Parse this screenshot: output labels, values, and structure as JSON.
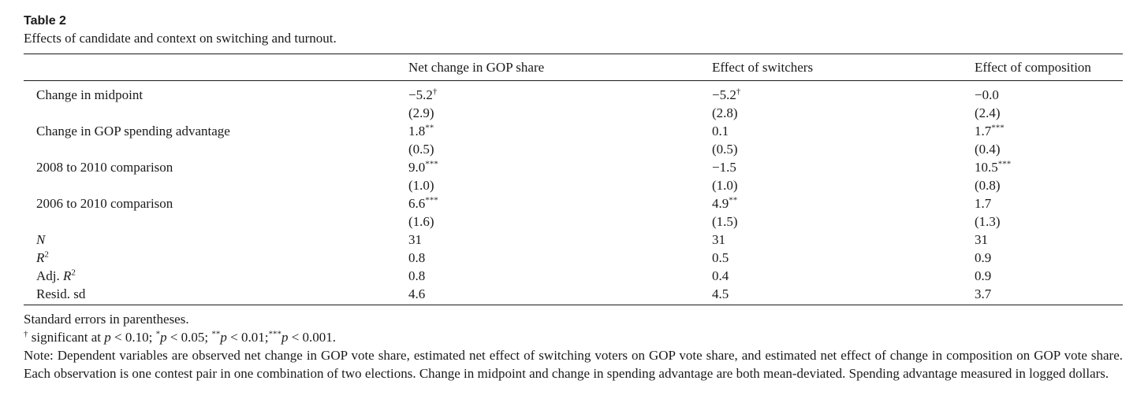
{
  "table": {
    "label": "Table 2",
    "caption": "Effects of candidate and context on switching and turnout.",
    "columns": [
      "Net change in GOP share",
      "Effect of switchers",
      "Effect of composition"
    ],
    "rows": [
      {
        "label": "Change in midpoint",
        "cells": [
          {
            "value": "−5.2",
            "sig": "†",
            "se": "(2.9)"
          },
          {
            "value": "−5.2",
            "sig": "†",
            "se": "(2.8)"
          },
          {
            "value": "−0.0",
            "sig": "",
            "se": "(2.4)"
          }
        ]
      },
      {
        "label": "Change in GOP spending advantage",
        "cells": [
          {
            "value": "1.8",
            "sig": "**",
            "se": "(0.5)"
          },
          {
            "value": "0.1",
            "sig": "",
            "se": "(0.5)"
          },
          {
            "value": "1.7",
            "sig": "***",
            "se": "(0.4)"
          }
        ]
      },
      {
        "label": "2008 to 2010 comparison",
        "cells": [
          {
            "value": "9.0",
            "sig": "***",
            "se": "(1.0)"
          },
          {
            "value": "−1.5",
            "sig": "",
            "se": "(1.0)"
          },
          {
            "value": "10.5",
            "sig": "***",
            "se": "(0.8)"
          }
        ]
      },
      {
        "label": "2006 to 2010 comparison",
        "cells": [
          {
            "value": "6.6",
            "sig": "***",
            "se": "(1.6)"
          },
          {
            "value": "4.9",
            "sig": "**",
            "se": "(1.5)"
          },
          {
            "value": "1.7",
            "sig": "",
            "se": "(1.3)"
          }
        ]
      }
    ],
    "stats": [
      {
        "label": "N",
        "italic": true,
        "sup": "",
        "values": [
          "31",
          "31",
          "31"
        ]
      },
      {
        "label": "R",
        "italic": true,
        "sup": "2",
        "values": [
          "0.8",
          "0.5",
          "0.9"
        ]
      },
      {
        "label_prefix": "Adj. ",
        "label": "R",
        "italic": true,
        "sup": "2",
        "values": [
          "0.8",
          "0.4",
          "0.9"
        ]
      },
      {
        "label": "Resid. sd",
        "italic": false,
        "sup": "",
        "values": [
          "4.6",
          "4.5",
          "3.7"
        ]
      }
    ]
  },
  "notes": {
    "se_note": "Standard errors in parentheses.",
    "sig_note": {
      "dagger": "†",
      "text1": " significant at ",
      "p": "p",
      "t1": " < 0.10; ",
      "s1": "*",
      "t2": " < 0.05; ",
      "s2": "**",
      "t3": " < 0.01;",
      "s3": "***",
      "t4": " < 0.001."
    },
    "note": "Note: Dependent variables are observed net change in GOP vote share, estimated net effect of switching voters on GOP vote share, and estimated net effect of change in composition on GOP vote share. Each observation is one contest pair in one combination of two elections. Change in midpoint and change in spending advantage are both mean-deviated. Spending advantage measured in logged dollars."
  }
}
